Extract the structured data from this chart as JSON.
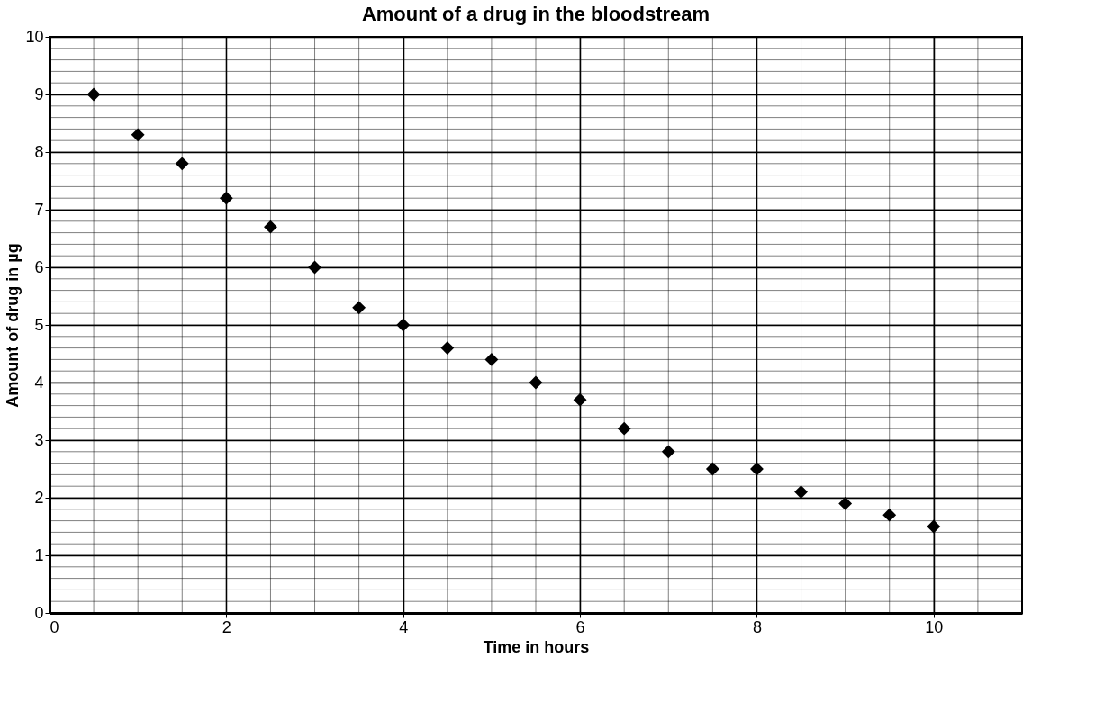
{
  "chart_data": {
    "type": "scatter",
    "title": "Amount of a drug in the bloodstream",
    "xlabel": "Time in hours",
    "ylabel": "Amount of drug in µg",
    "x": [
      0.5,
      1,
      1.5,
      2,
      2.5,
      3,
      3.5,
      4,
      4.5,
      5,
      5.5,
      6,
      6.5,
      7,
      7.5,
      8,
      8.5,
      9,
      9.5,
      10
    ],
    "series": [
      {
        "color": "#000000",
        "values": [
          9,
          8.3,
          7.8,
          7.2,
          6.7,
          6.0,
          5.3,
          5.0,
          4.6,
          4.4,
          4.0,
          3.7,
          3.2,
          2.8,
          2.5,
          2.5,
          2.1,
          1.9,
          1.7,
          1.5
        ]
      }
    ],
    "xlim": [
      0,
      11
    ],
    "xticks": [
      0,
      2,
      4,
      6,
      8,
      10
    ],
    "ylim": [
      0,
      10
    ],
    "yticks": [
      0,
      1,
      2,
      3,
      4,
      5,
      6,
      7,
      8,
      9,
      10
    ],
    "grid": true,
    "marker": "diamond"
  }
}
